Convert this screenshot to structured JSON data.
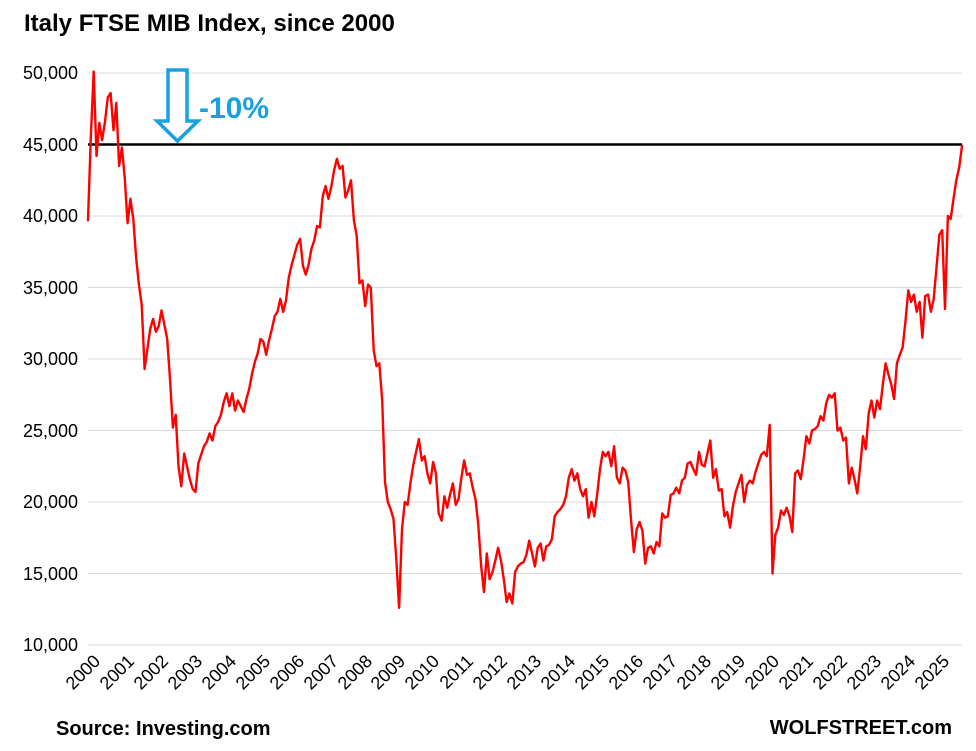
{
  "header": {
    "title": "Italy FTSE MIB Index, since 2000"
  },
  "annotation": {
    "drawdown_label": "-10%",
    "color": "#18A0E0",
    "reference_value": 45000,
    "reference_value_label": "45,000"
  },
  "footer": {
    "source": "Source: Investing.com",
    "brand": "WOLFSTREET.com"
  },
  "chart_data": {
    "type": "line",
    "title": "Italy FTSE MIB Index, since 2000",
    "xlabel": "",
    "ylabel": "",
    "x_unit": "year",
    "x_start_year": 2000,
    "points_per_year": 12,
    "x_span_years": 25.75,
    "x_tick_labels": [
      "2000",
      "2001",
      "2002",
      "2003",
      "2004",
      "2005",
      "2006",
      "2007",
      "2008",
      "2009",
      "2010",
      "2011",
      "2012",
      "2013",
      "2014",
      "2015",
      "2016",
      "2017",
      "2018",
      "2019",
      "2020",
      "2021",
      "2022",
      "2023",
      "2024",
      "2025"
    ],
    "y_ticks": [
      10000,
      15000,
      20000,
      25000,
      30000,
      35000,
      40000,
      45000,
      50000
    ],
    "y_tick_labels": [
      "10,000",
      "15,000",
      "20,000",
      "25,000",
      "30,000",
      "35,000",
      "40,000",
      "45,000",
      "50,000"
    ],
    "ylim": [
      10000,
      50000
    ],
    "grid": true,
    "legend": false,
    "line_color": "#FF0000",
    "gridline_color": "#D9D9D9",
    "reference_line": {
      "value": 45000,
      "color": "#000000"
    },
    "series": [
      {
        "name": "FTSE MIB",
        "values": [
          39700,
          45500,
          50100,
          44200,
          46500,
          45300,
          46600,
          48300,
          48600,
          46000,
          47900,
          43500,
          44800,
          42600,
          39500,
          41200,
          39800,
          37100,
          35200,
          33800,
          29300,
          30700,
          32100,
          32800,
          31900,
          32300,
          33400,
          32400,
          31400,
          28600,
          25200,
          26100,
          22500,
          21100,
          23400,
          22500,
          21600,
          20900,
          20700,
          22700,
          23300,
          23900,
          24200,
          24800,
          24300,
          25300,
          25600,
          26100,
          27000,
          27600,
          26700,
          27600,
          26400,
          27100,
          26700,
          26300,
          27200,
          27900,
          29000,
          29800,
          30400,
          31400,
          31200,
          30300,
          31300,
          32100,
          33000,
          33300,
          34200,
          33300,
          34100,
          35700,
          36600,
          37300,
          38000,
          38400,
          36500,
          35900,
          36600,
          37700,
          38300,
          39300,
          39200,
          41400,
          42100,
          41200,
          42000,
          43200,
          44000,
          43300,
          43500,
          41300,
          41800,
          42500,
          39700,
          38600,
          35300,
          35500,
          33700,
          35200,
          35000,
          30600,
          29500,
          29700,
          27100,
          21400,
          20000,
          19500,
          18800,
          16000,
          12600,
          18100,
          20000,
          19800,
          21300,
          22600,
          23500,
          24400,
          22900,
          23200,
          22000,
          21300,
          22800,
          22000,
          19200,
          18700,
          20400,
          19600,
          20500,
          21300,
          19800,
          20200,
          21700,
          22900,
          21900,
          22000,
          21000,
          20200,
          18400,
          15500,
          13700,
          16400,
          14600,
          15100,
          15900,
          16800,
          15900,
          14600,
          13000,
          13600,
          12900,
          15100,
          15500,
          15700,
          15800,
          16300,
          17300,
          16400,
          15500,
          16800,
          17100,
          15900,
          16900,
          17000,
          17400,
          19000,
          19300,
          19500,
          19800,
          20400,
          21700,
          22300,
          21500,
          22000,
          20900,
          20400,
          20900,
          18900,
          20000,
          19000,
          20500,
          22300,
          23500,
          23200,
          23500,
          22500,
          23900,
          21700,
          21300,
          22400,
          22200,
          21400,
          18700,
          16500,
          18100,
          18600,
          18000,
          15700,
          16800,
          16900,
          16400,
          17200,
          16900,
          19200,
          18900,
          19000,
          20500,
          20600,
          21000,
          20600,
          21500,
          21700,
          22700,
          22800,
          22300,
          21900,
          23500,
          22600,
          22500,
          23400,
          24300,
          21700,
          22300,
          20800,
          20900,
          19000,
          19300,
          18200,
          19700,
          20700,
          21300,
          21900,
          20000,
          21200,
          21500,
          21300,
          22100,
          22700,
          23300,
          23500,
          23200,
          25400,
          15000,
          17700,
          18200,
          19400,
          19100,
          19600,
          19000,
          17900,
          22000,
          22200,
          21600,
          23000,
          24600,
          24100,
          25000,
          25100,
          25300,
          26000,
          25700,
          26900,
          27500,
          27300,
          27600,
          25000,
          25200,
          24300,
          24500,
          21300,
          22400,
          21600,
          20600,
          22500,
          24600,
          23700,
          26200,
          27100,
          25900,
          27100,
          26500,
          28200,
          29700,
          28900,
          28200,
          27200,
          29700,
          30300,
          30800,
          32600,
          34800,
          34000,
          34500,
          33300,
          34000,
          31500,
          34400,
          34500,
          33300,
          34200,
          36400,
          38700,
          39000,
          33500,
          40000,
          39800,
          41200,
          42500,
          43400,
          44900
        ]
      }
    ]
  }
}
